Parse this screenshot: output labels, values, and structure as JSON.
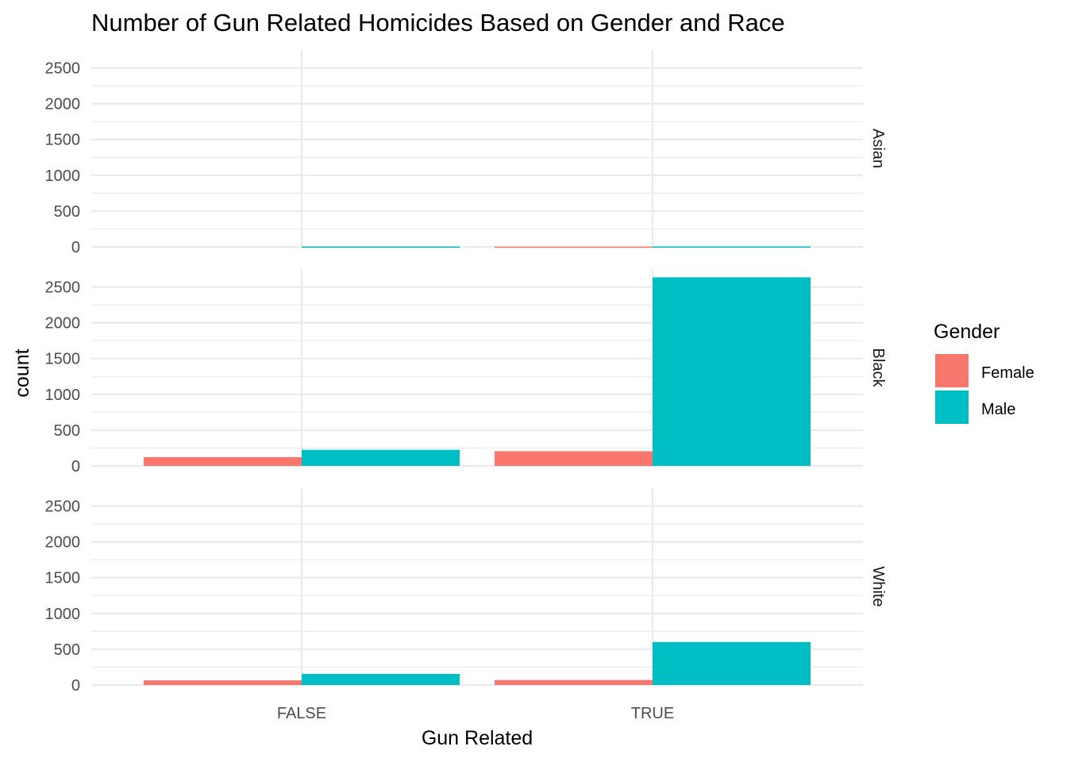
{
  "chart_data": {
    "type": "bar",
    "title": "Number of Gun Related Homicides Based on Gender and Race",
    "xlabel": "Gun Related",
    "ylabel": "count",
    "categories": [
      "FALSE",
      "TRUE"
    ],
    "ylim": [
      0,
      2750
    ],
    "yticks": [
      0,
      500,
      1000,
      1500,
      2000,
      2500
    ],
    "yticks_labels": [
      "0",
      "500",
      "1000",
      "1500",
      "2000",
      "2500"
    ],
    "grid": true,
    "legend": {
      "title": "Gender",
      "position": "right",
      "items": [
        {
          "label": "Female",
          "color": "#F8766D"
        },
        {
          "label": "Male",
          "color": "#00BFC4"
        }
      ]
    },
    "facets": [
      {
        "label": "Asian",
        "series": [
          {
            "name": "Female",
            "values": [
              0,
              3
            ]
          },
          {
            "name": "Male",
            "values": [
              4,
              5
            ]
          }
        ]
      },
      {
        "label": "Black",
        "series": [
          {
            "name": "Female",
            "values": [
              123,
              206
            ]
          },
          {
            "name": "Male",
            "values": [
              225,
              2635
            ]
          }
        ]
      },
      {
        "label": "White",
        "series": [
          {
            "name": "Female",
            "values": [
              65,
              70
            ]
          },
          {
            "name": "Male",
            "values": [
              155,
              600
            ]
          }
        ]
      }
    ]
  }
}
